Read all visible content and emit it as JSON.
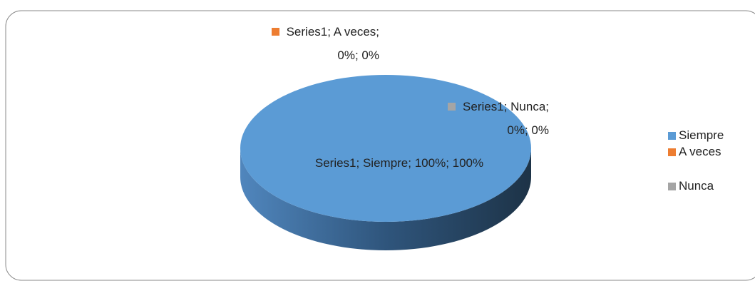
{
  "chart_data": {
    "type": "pie",
    "categories": [
      "Siempre",
      "A veces",
      "Nunca"
    ],
    "colors": [
      "#5b9bd5",
      "#ed7d31",
      "#a5a5a5"
    ],
    "series": [
      {
        "name": "Series1",
        "values": [
          100,
          0,
          0
        ],
        "value_labels": [
          "Series1; Siempre; 100%; 100%",
          "Series1; A veces; 0%; 0%",
          "Series1; Nunca; 0%; 0%"
        ]
      }
    ],
    "legend": "right"
  }
}
